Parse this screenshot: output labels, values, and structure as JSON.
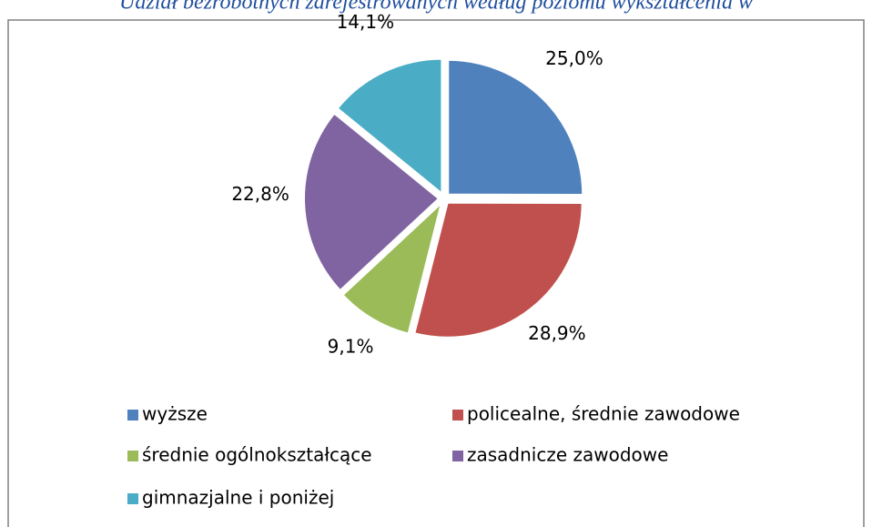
{
  "chart_data": {
    "type": "pie",
    "title": "Udział bezrobotnych zarejestrowanych według poziomu wykształcenia w",
    "categories": [
      "wyższe",
      "policealne, średnie zawodowe",
      "średnie ogólnokształcące",
      "zasadnicze zawodowe",
      "gimnazjalne i poniżej"
    ],
    "values": [
      25.0,
      28.9,
      9.1,
      22.8,
      14.1
    ],
    "value_labels": [
      "25,0%",
      "28,9%",
      "9,1%",
      "22,8%",
      "14,1%"
    ],
    "colors": [
      "#4f81bd",
      "#c0504d",
      "#9bbb59",
      "#8064a2",
      "#4bacc6"
    ],
    "legend": "bottom"
  }
}
